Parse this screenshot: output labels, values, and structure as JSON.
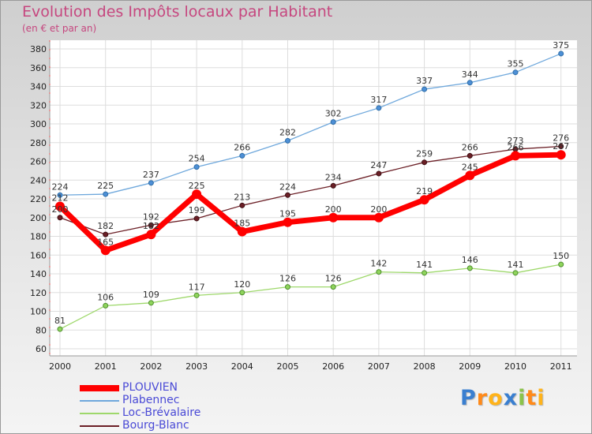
{
  "chart_data": {
    "type": "line",
    "title": "Evolution des Impôts locaux par Habitant",
    "subtitle": "(en € et par an)",
    "x": [
      "2000",
      "2001",
      "2002",
      "2003",
      "2004",
      "2005",
      "2006",
      "2007",
      "2008",
      "2009",
      "2010",
      "2011"
    ],
    "ylim": [
      60,
      380
    ],
    "yticks": [
      60,
      80,
      100,
      120,
      140,
      160,
      180,
      200,
      220,
      240,
      260,
      280,
      300,
      320,
      340,
      360,
      380
    ],
    "series": [
      {
        "name": "PLOUVIEN",
        "color": "#ff0000",
        "values": [
          212,
          165,
          182,
          225,
          185,
          195,
          200,
          200,
          219,
          245,
          266,
          267
        ]
      },
      {
        "name": "Plabennec",
        "color": "#6fa8dc",
        "values": [
          224,
          225,
          237,
          254,
          266,
          282,
          302,
          317,
          337,
          344,
          355,
          375
        ]
      },
      {
        "name": "Loc-Brévalaire",
        "color": "#9ed86b",
        "values": [
          81,
          106,
          109,
          117,
          120,
          126,
          126,
          142,
          141,
          146,
          141,
          150
        ]
      },
      {
        "name": "Bourg-Blanc",
        "color": "#6b1f26",
        "values": [
          200,
          182,
          192,
          199,
          213,
          224,
          234,
          247,
          259,
          266,
          273,
          276
        ]
      }
    ]
  },
  "logo": {
    "letters": [
      "P",
      "r",
      "o",
      "x",
      "i",
      "t",
      "i"
    ],
    "colors": [
      "#3a7fd0",
      "#ff8a1a",
      "#ffb31a",
      "#3a7fd0",
      "#8bc34a",
      "#ff8a1a",
      "#ffb31a"
    ]
  }
}
